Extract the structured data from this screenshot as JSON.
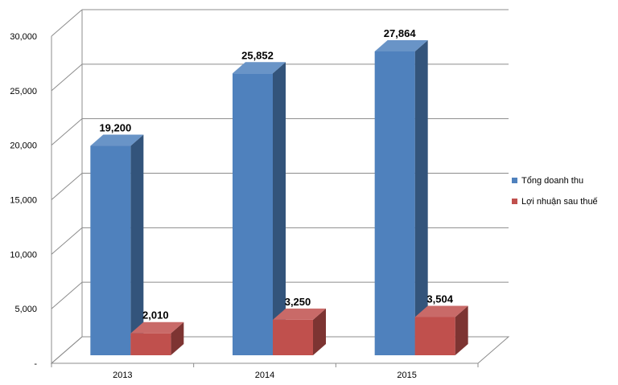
{
  "chart_data": {
    "type": "bar",
    "categories": [
      "2013",
      "2014",
      "2015"
    ],
    "series": [
      {
        "name": "Tổng doanh thu",
        "values": [
          19200,
          25852,
          27864
        ],
        "labels": [
          "19,200",
          "25,852",
          "27,864"
        ],
        "color": "#4F81BD"
      },
      {
        "name": "Lợi nhuận sau thuế",
        "values": [
          2010,
          3250,
          3504
        ],
        "labels": [
          "2,010",
          "3,250",
          "3,504"
        ],
        "color": "#C0504D"
      }
    ],
    "yticks": [
      "-",
      "5,000",
      "10,000",
      "15,000",
      "20,000",
      "25,000",
      "30,000"
    ],
    "ylim": [
      0,
      30000
    ],
    "grid": true,
    "legend_position": "right",
    "style": "3d-clustered"
  }
}
